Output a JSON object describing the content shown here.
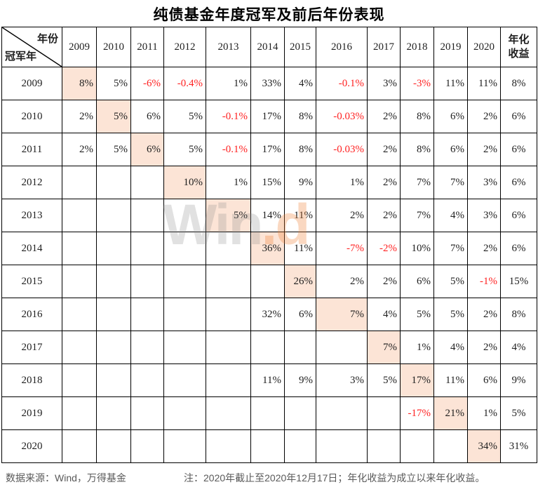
{
  "title": "纯债基金年度冠军及前后年份表现",
  "corner": {
    "top": "年份",
    "bottom": "冠军年"
  },
  "watermark": {
    "gray": "Win",
    "orange": ".d"
  },
  "footer": {
    "source": "数据来源：Wind，万得基金",
    "note": "注：2020年截止至2020年12月17日；年化收益为成立以来年化收益。"
  },
  "colors": {
    "highlight": "#FCE4D6",
    "negative_text": "#FF2222",
    "table_text": "#1F1F1F",
    "border": "#000000",
    "footer_text": "#595959",
    "watermark_gray": "#8C8C8C",
    "watermark_orange": "#ED7D31"
  },
  "chart_data": {
    "type": "table",
    "title": "纯债基金年度冠军及前后年份表现",
    "corner_header": {
      "top_right": "年份",
      "bottom_left": "冠军年"
    },
    "year_columns": [
      "2009",
      "2010",
      "2011",
      "2012",
      "2013",
      "2014",
      "2015",
      "2016",
      "2017",
      "2018",
      "2019",
      "2020"
    ],
    "annualized_header_lines": [
      "年化",
      "收益"
    ],
    "rows": [
      {
        "year": "2009",
        "champion_col": 0,
        "cells": [
          "8%",
          "5%",
          "-6%",
          "-0.4%",
          "1%",
          "33%",
          "4%",
          "-0.1%",
          "3%",
          "-3%",
          "11%",
          "11%"
        ],
        "annualized": "8%"
      },
      {
        "year": "2010",
        "champion_col": 1,
        "cells": [
          "2%",
          "5%",
          "6%",
          "5%",
          "-0.1%",
          "17%",
          "8%",
          "-0.03%",
          "2%",
          "8%",
          "6%",
          "2%"
        ],
        "annualized": "6%"
      },
      {
        "year": "2011",
        "champion_col": 2,
        "cells": [
          "2%",
          "5%",
          "6%",
          "5%",
          "-0.1%",
          "17%",
          "8%",
          "-0.03%",
          "2%",
          "8%",
          "6%",
          "2%"
        ],
        "annualized": "6%"
      },
      {
        "year": "2012",
        "champion_col": 3,
        "cells": [
          "",
          "",
          "",
          "10%",
          "1%",
          "15%",
          "9%",
          "1%",
          "2%",
          "7%",
          "7%",
          "3%"
        ],
        "annualized": "6%"
      },
      {
        "year": "2013",
        "champion_col": 4,
        "cells": [
          "",
          "",
          "",
          "",
          "5%",
          "14%",
          "11%",
          "2%",
          "2%",
          "7%",
          "4%",
          "3%"
        ],
        "annualized": "6%"
      },
      {
        "year": "2014",
        "champion_col": 5,
        "cells": [
          "",
          "",
          "",
          "",
          "",
          "36%",
          "11%",
          "-7%",
          "-2%",
          "10%",
          "7%",
          "2%"
        ],
        "annualized": "6%"
      },
      {
        "year": "2015",
        "champion_col": 6,
        "cells": [
          "",
          "",
          "",
          "",
          "",
          "",
          "26%",
          "2%",
          "2%",
          "6%",
          "5%",
          "-1%"
        ],
        "annualized": "15%"
      },
      {
        "year": "2016",
        "champion_col": 7,
        "cells": [
          "",
          "",
          "",
          "",
          "",
          "32%",
          "6%",
          "7%",
          "4%",
          "5%",
          "5%",
          "2%"
        ],
        "annualized": "8%"
      },
      {
        "year": "2017",
        "champion_col": 8,
        "cells": [
          "",
          "",
          "",
          "",
          "",
          "",
          "",
          "",
          "7%",
          "1%",
          "4%",
          "2%"
        ],
        "annualized": "4%"
      },
      {
        "year": "2018",
        "champion_col": 9,
        "cells": [
          "",
          "",
          "",
          "",
          "",
          "11%",
          "9%",
          "3%",
          "5%",
          "17%",
          "11%",
          "6%"
        ],
        "annualized": "9%"
      },
      {
        "year": "2019",
        "champion_col": 10,
        "cells": [
          "",
          "",
          "",
          "",
          "",
          "",
          "",
          "",
          "",
          "-17%",
          "21%",
          "1%"
        ],
        "annualized": "5%"
      },
      {
        "year": "2020",
        "champion_col": 11,
        "cells": [
          "",
          "",
          "",
          "",
          "",
          "",
          "",
          "",
          "",
          "",
          "",
          "34%"
        ],
        "annualized": "31%"
      }
    ]
  }
}
